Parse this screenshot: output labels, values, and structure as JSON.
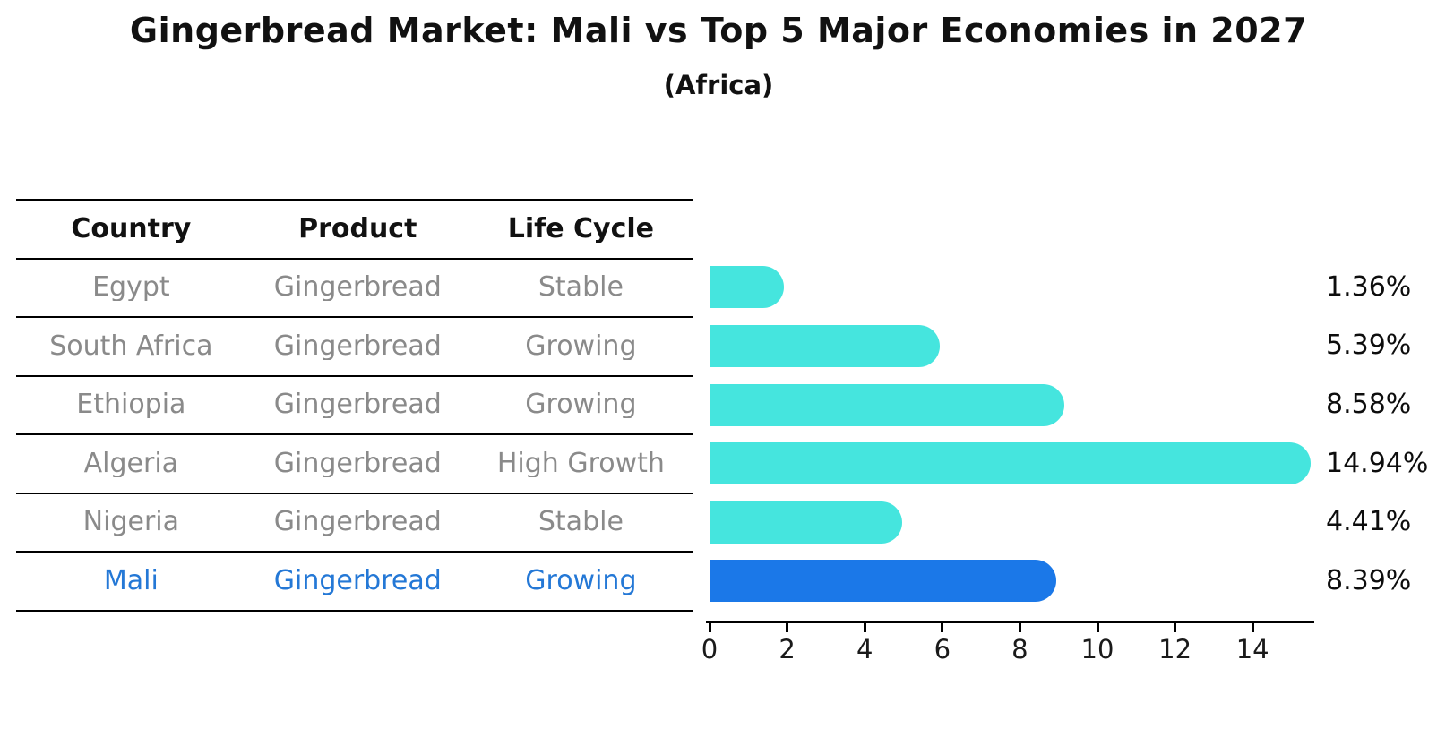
{
  "title": "Gingerbread Market: Mali vs Top 5 Major Economies in 2027",
  "subtitle": "(Africa)",
  "table": {
    "headers": [
      "Country",
      "Product",
      "Life Cycle"
    ],
    "rows": [
      {
        "country": "Egypt",
        "product": "Gingerbread",
        "life_cycle": "Stable",
        "highlight": false
      },
      {
        "country": "South Africa",
        "product": "Gingerbread",
        "life_cycle": "Growing",
        "highlight": false
      },
      {
        "country": "Ethiopia",
        "product": "Gingerbread",
        "life_cycle": "Growing",
        "highlight": false
      },
      {
        "country": "Algeria",
        "product": "Gingerbread",
        "life_cycle": "High Growth",
        "highlight": false
      },
      {
        "country": "Nigeria",
        "product": "Gingerbread",
        "life_cycle": "Stable",
        "highlight": false
      },
      {
        "country": "Mali",
        "product": "Gingerbread",
        "life_cycle": "Growing",
        "highlight": true
      }
    ]
  },
  "chart_data": {
    "type": "bar",
    "orientation": "horizontal",
    "title": "Gingerbread Market: Mali vs Top 5 Major Economies in 2027",
    "subtitle": "(Africa)",
    "categories": [
      "Egypt",
      "South Africa",
      "Ethiopia",
      "Algeria",
      "Nigeria",
      "Mali"
    ],
    "values": [
      1.36,
      5.39,
      8.58,
      14.94,
      4.41,
      8.39
    ],
    "value_labels": [
      "1.36%",
      "5.39%",
      "8.58%",
      "14.94%",
      "4.41%",
      "8.39%"
    ],
    "highlight_index": 5,
    "xlim": [
      0,
      15.5
    ],
    "xticks": [
      0,
      2,
      4,
      6,
      8,
      10,
      12,
      14
    ],
    "grid": false,
    "legend": false
  },
  "colors": {
    "bar": "#45e5de",
    "highlight_bar": "#1b78e8",
    "highlight_bar_border": "#1b78e8",
    "highlight_text": "#2478d6",
    "body_text": "#8a8a8a",
    "header_text": "#111111",
    "axis": "#000000"
  }
}
